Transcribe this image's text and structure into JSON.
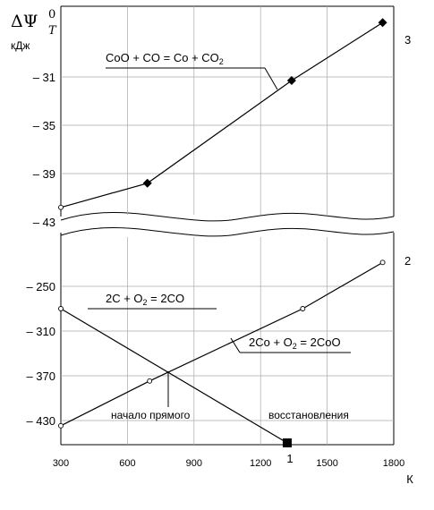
{
  "chart_data": [
    {
      "type": "line",
      "panel": "upper",
      "ylabel": "ΔΨ",
      "ylabel_sup": "0",
      "ylabel_sub": "T",
      "yunit": "кДж",
      "xlim": [
        300,
        1800
      ],
      "ylim": [
        -43,
        -25
      ],
      "yticks": [
        "– 31",
        "– 35",
        "– 39",
        "– 43"
      ],
      "ytick_values": [
        -31,
        -35,
        -39,
        -43
      ],
      "grid": true,
      "series": [
        {
          "name": "CoO + CO = Co + CO2",
          "label_main": "CoO + CO = Co + CO",
          "label_sub": "2",
          "number": "3",
          "x": [
            300,
            690,
            1340,
            1750
          ],
          "y": [
            -41.8,
            -39.8,
            -31.3,
            -26.5
          ],
          "markers": [
            "circle",
            "diamond",
            "diamond",
            "diamond"
          ]
        }
      ]
    },
    {
      "type": "line",
      "panel": "lower",
      "xlabel": "К",
      "xlim": [
        300,
        1800
      ],
      "ylim": [
        -460,
        -180
      ],
      "xticks": [
        "300",
        "600",
        "900",
        "1200",
        "1500",
        "1800"
      ],
      "xtick_values": [
        300,
        600,
        900,
        1200,
        1500,
        1800
      ],
      "yticks": [
        "– 250",
        "– 310",
        "– 370",
        "– 430"
      ],
      "ytick_values": [
        -250,
        -310,
        -370,
        -430
      ],
      "grid": true,
      "annotation_left": "начало прямого",
      "annotation_right": "восстановления",
      "intersection_label": "1",
      "intersection_x": 1320,
      "series": [
        {
          "name": "2C + O2 = 2CO",
          "label_main": "2C + O",
          "label_sub": "2",
          "label_tail": " = 2CO",
          "x": [
            300,
            1320
          ],
          "y": [
            -280,
            -460
          ],
          "markers": [
            "circle",
            "square"
          ]
        },
        {
          "name": "2Co + O2 = 2CoO",
          "label_main": "2Co + O",
          "label_sub": "2",
          "label_tail": " = 2CoO",
          "number": "2",
          "x": [
            300,
            700,
            1390,
            1750
          ],
          "y": [
            -437,
            -377,
            -280,
            -218
          ],
          "markers": [
            "circle",
            "circle",
            "circle",
            "circle"
          ]
        }
      ]
    }
  ]
}
